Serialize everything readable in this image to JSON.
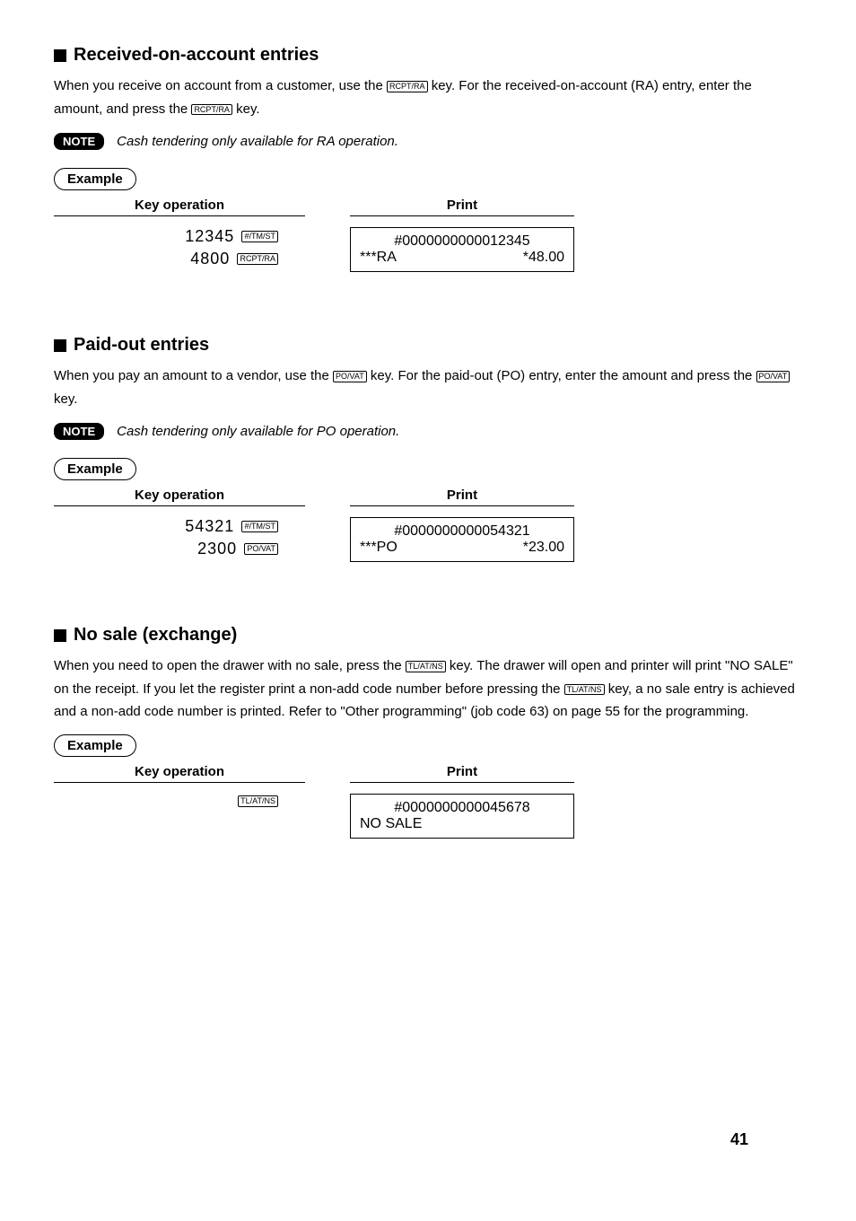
{
  "sections": {
    "ra": {
      "title": "Received-on-account entries",
      "desc_pre": "When you receive on account from a customer, use the ",
      "key1": "RCPT/RA",
      "desc_mid": " key. For the received-on-account (RA) entry, enter the amount, and press the ",
      "key2": "RCPT/RA",
      "desc_post": " key.",
      "note": "Cash tendering only available for RA operation.",
      "example": {
        "keyop_label": "Key operation",
        "print_label": "Print",
        "rows": [
          {
            "num": "12345",
            "key": "#/TM/ST"
          },
          {
            "num": "4800",
            "key": "RCPT/RA"
          }
        ],
        "receipt": {
          "line1": "#0000000000012345",
          "left": "***RA",
          "right": "*48.00"
        }
      }
    },
    "po": {
      "title": "Paid-out entries",
      "desc_pre": "When you pay an amount to a vendor, use the ",
      "key1": "PO/VAT",
      "desc_mid": " key. For the paid-out (PO) entry, enter the amount and press the ",
      "key2": "PO/VAT",
      "desc_post": " key.",
      "note": "Cash tendering only available for PO operation.",
      "example": {
        "keyop_label": "Key operation",
        "print_label": "Print",
        "rows": [
          {
            "num": "54321",
            "key": "#/TM/ST"
          },
          {
            "num": "2300",
            "key": "PO/VAT"
          }
        ],
        "receipt": {
          "line1": "#0000000000054321",
          "left": "***PO",
          "right": "*23.00"
        }
      }
    },
    "nosale": {
      "title": "No sale (exchange)",
      "desc_pre": "When you need to open the drawer with no sale, press the ",
      "key1": "TL/AT/NS",
      "desc_mid": " key. The drawer will open and printer will print \"NO SALE\" on the receipt. If you let the register print a non-add code number before pressing the ",
      "key2": "TL/AT/NS",
      "desc_post": " key, a no sale entry is achieved and a non-add code number is printed. Refer to \"Other programming\" (job code 63) on page 55 for the programming.",
      "example": {
        "keyop_label": "Key operation",
        "print_label": "Print",
        "rows": [
          {
            "num": "",
            "key": "TL/AT/NS"
          }
        ],
        "receipt": {
          "line1": "#0000000000045678",
          "left": "NO SALE",
          "right": ""
        }
      }
    }
  },
  "labels": {
    "note": "NOTE",
    "example": "Example"
  },
  "page_number": "41"
}
